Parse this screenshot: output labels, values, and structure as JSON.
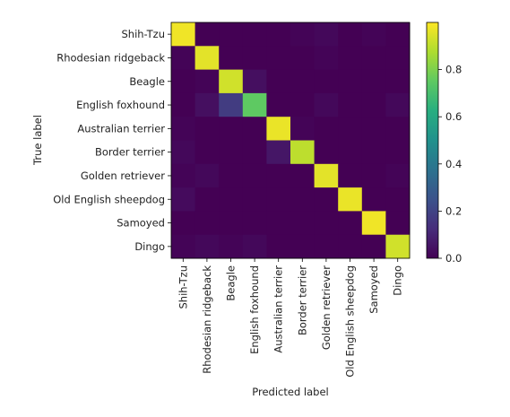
{
  "chart_data": {
    "type": "heatmap",
    "title": "",
    "xlabel": "Predicted label",
    "ylabel": "True label",
    "rows": [
      "Shih-Tzu",
      "Rhodesian ridgeback",
      "Beagle",
      "English foxhound",
      "Australian terrier",
      "Border terrier",
      "Golden retriever",
      "Old English sheepdog",
      "Samoyed",
      "Dingo"
    ],
    "columns": [
      "Shih-Tzu",
      "Rhodesian ridgeback",
      "Beagle",
      "English foxhound",
      "Australian terrier",
      "Border terrier",
      "Golden retriever",
      "Old English sheepdog",
      "Samoyed",
      "Dingo"
    ],
    "values": [
      [
        0.98,
        0.0,
        0.0,
        0.0,
        0.0,
        0.01,
        0.02,
        0.0,
        0.01,
        0.0
      ],
      [
        0.01,
        0.96,
        0.0,
        0.0,
        0.0,
        0.0,
        0.01,
        0.0,
        0.0,
        0.0
      ],
      [
        0.0,
        0.01,
        0.93,
        0.04,
        0.0,
        0.0,
        0.0,
        0.0,
        0.0,
        0.0
      ],
      [
        0.0,
        0.04,
        0.18,
        0.75,
        0.0,
        0.0,
        0.02,
        0.0,
        0.0,
        0.02
      ],
      [
        0.01,
        0.0,
        0.0,
        0.0,
        0.97,
        0.01,
        0.0,
        0.0,
        0.0,
        0.0
      ],
      [
        0.02,
        0.0,
        0.0,
        0.0,
        0.06,
        0.9,
        0.0,
        0.0,
        0.0,
        0.0
      ],
      [
        0.01,
        0.02,
        0.0,
        0.0,
        0.0,
        0.0,
        0.96,
        0.0,
        0.0,
        0.01
      ],
      [
        0.03,
        0.0,
        0.0,
        0.0,
        0.0,
        0.0,
        0.0,
        0.97,
        0.0,
        0.0
      ],
      [
        0.0,
        0.0,
        0.0,
        0.0,
        0.0,
        0.0,
        0.0,
        0.0,
        0.98,
        0.0
      ],
      [
        0.01,
        0.02,
        0.01,
        0.02,
        0.0,
        0.0,
        0.0,
        0.0,
        0.0,
        0.93
      ]
    ],
    "colormap": "viridis",
    "colorbar": {
      "min": 0.0,
      "max": 1.0,
      "ticks": [
        0.0,
        0.2,
        0.4,
        0.6,
        0.8
      ],
      "tick_labels": [
        "0.0",
        "0.2",
        "0.4",
        "0.6",
        "0.8"
      ]
    },
    "grid": false,
    "legend": "colorbar-right"
  }
}
